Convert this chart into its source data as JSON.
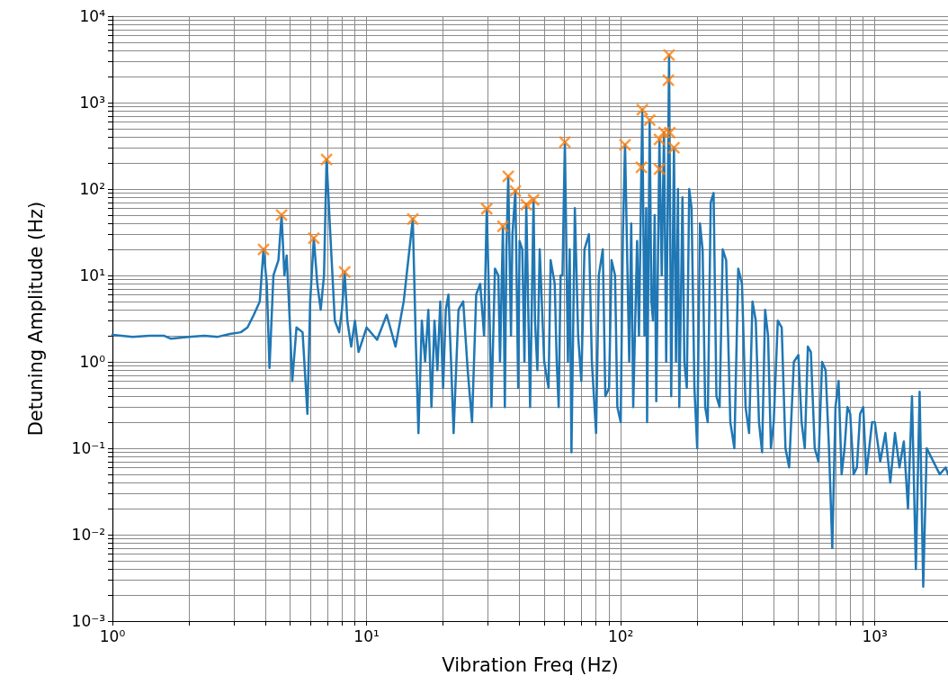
{
  "chart_data": {
    "type": "line",
    "xlabel": "Vibration Freq (Hz)",
    "ylabel": "Detuning Amplitude (Hz)",
    "log": "xy",
    "grid": true,
    "xlim": [
      1,
      1940
    ],
    "ylim": [
      0.001,
      10000
    ],
    "xticks": [
      {
        "value": 1,
        "label": "10⁰"
      },
      {
        "value": 10,
        "label": "10¹"
      },
      {
        "value": 100,
        "label": "10²"
      },
      {
        "value": 1000,
        "label": "10³"
      }
    ],
    "yticks": [
      {
        "value": 0.001,
        "label": "10⁻³"
      },
      {
        "value": 0.01,
        "label": "10⁻²"
      },
      {
        "value": 0.1,
        "label": "10⁻¹"
      },
      {
        "value": 1,
        "label": "10⁰"
      },
      {
        "value": 10,
        "label": "10¹"
      },
      {
        "value": 100,
        "label": "10²"
      },
      {
        "value": 1000,
        "label": "10³"
      },
      {
        "value": 10000,
        "label": "10⁴"
      }
    ],
    "series": [
      {
        "type": "line",
        "color": "#1f77b4",
        "line_style": "solid",
        "x": [
          1.0,
          1.2,
          1.4,
          1.6,
          1.7,
          2.0,
          2.3,
          2.6,
          2.9,
          3.2,
          3.4,
          3.6,
          3.8,
          3.93,
          4.05,
          4.15,
          4.3,
          4.5,
          4.63,
          4.75,
          4.85,
          5.0,
          5.1,
          5.3,
          5.6,
          5.85,
          6.0,
          6.2,
          6.4,
          6.6,
          6.8,
          6.96,
          7.2,
          7.5,
          7.8,
          8.0,
          8.2,
          8.4,
          8.7,
          9.0,
          9.3,
          10,
          11,
          12,
          13,
          14,
          15.2,
          15.6,
          16,
          16.5,
          17,
          17.5,
          18,
          18.5,
          19,
          19.5,
          20,
          20.5,
          21,
          21.5,
          22,
          23,
          24,
          25,
          26,
          27,
          28,
          29,
          29.7,
          30.5,
          31,
          32,
          33,
          33.5,
          34.4,
          35,
          35.5,
          36.1,
          37,
          37.5,
          38.5,
          39.5,
          40,
          41,
          41.8,
          42.5,
          44,
          45.4,
          46,
          47,
          48,
          50,
          52,
          53,
          55,
          56,
          57,
          58,
          59,
          60.3,
          62,
          63,
          64,
          66,
          68,
          70,
          72,
          75,
          77,
          80,
          82,
          85,
          87,
          90,
          92,
          95,
          97,
          100,
          102,
          104,
          108,
          110,
          112,
          116,
          118,
          120.6,
          121.6,
          124,
          126,
          127,
          130,
          132,
          134,
          136,
          138,
          142,
          145,
          148,
          151,
          155,
          158,
          162,
          165,
          168,
          170,
          175,
          178,
          182,
          186,
          190,
          195,
          200,
          205,
          210,
          215,
          220,
          226,
          232,
          238,
          245,
          252,
          260,
          270,
          280,
          290,
          300,
          310,
          320,
          330,
          340,
          350,
          360,
          370,
          380,
          390,
          400,
          415,
          430,
          445,
          460,
          480,
          500,
          515,
          530,
          545,
          560,
          580,
          600,
          620,
          640,
          660,
          680,
          700,
          720,
          740,
          760,
          780,
          800,
          825,
          850,
          875,
          900,
          925,
          950,
          975,
          1000,
          1050,
          1100,
          1150,
          1200,
          1250,
          1300,
          1350,
          1400,
          1450,
          1500,
          1550,
          1600,
          1700,
          1800,
          1900,
          1940
        ],
        "values": [
          2.05,
          1.95,
          2.0,
          2.0,
          1.85,
          1.95,
          2.0,
          1.95,
          2.1,
          2.2,
          2.5,
          3.5,
          5,
          20,
          8,
          0.85,
          10,
          15,
          50,
          10,
          17,
          2.5,
          0.6,
          2.5,
          2.2,
          0.25,
          5,
          27,
          8,
          4,
          10,
          220,
          30,
          3,
          2.2,
          4,
          11,
          3,
          1.5,
          3,
          1.3,
          2.5,
          1.8,
          3.5,
          1.5,
          5,
          45,
          2,
          0.15,
          3,
          1,
          4,
          0.3,
          3,
          0.8,
          5,
          0.5,
          4,
          6,
          1,
          0.15,
          4,
          5,
          0.8,
          0.2,
          6,
          8,
          2,
          59,
          3,
          0.3,
          12,
          10,
          1,
          37,
          0.3,
          20,
          140,
          2,
          30,
          95,
          0.5,
          25,
          20,
          1,
          66,
          0.3,
          75,
          3,
          0.8,
          20,
          1,
          0.5,
          15,
          8,
          1,
          0.3,
          10,
          10,
          350,
          1,
          20,
          0.09,
          60,
          2,
          0.6,
          20,
          30,
          1,
          0.15,
          10,
          20,
          0.4,
          0.5,
          15,
          10,
          0.3,
          0.2,
          30,
          325,
          1,
          40,
          0.3,
          25,
          2,
          178,
          826,
          2,
          60,
          0.2,
          630,
          5,
          3,
          50,
          0.35,
          375,
          10,
          453,
          1,
          3550,
          0.4,
          300,
          1,
          100,
          0.3,
          80,
          1,
          0.5,
          100,
          60,
          0.5,
          0.1,
          40,
          20,
          0.3,
          0.2,
          70,
          90,
          0.4,
          0.3,
          20,
          15,
          0.2,
          0.1,
          12,
          8,
          0.3,
          0.15,
          5,
          3,
          0.2,
          0.09,
          4,
          2,
          0.1,
          0.2,
          3,
          2.5,
          0.1,
          0.06,
          1,
          1.2,
          0.2,
          0.1,
          1.5,
          1.3,
          0.1,
          0.07,
          1,
          0.8,
          0.1,
          0.007,
          0.3,
          0.6,
          0.05,
          0.1,
          0.3,
          0.25,
          0.05,
          0.06,
          0.25,
          0.3,
          0.05,
          0.1,
          0.2,
          0.2,
          0.07,
          0.15,
          0.04,
          0.15,
          0.06,
          0.12,
          0.02,
          0.4,
          0.004,
          0.45,
          0.0025,
          0.1,
          0.07,
          0.05,
          0.06,
          0.05
        ]
      },
      {
        "type": "scatter",
        "color": "#ff7f0e",
        "marker": "cross",
        "x": [
          3.93,
          4.63,
          6.2,
          6.96,
          8.2,
          15.2,
          29.7,
          34.4,
          36.1,
          38.5,
          42.5,
          45.4,
          60.3,
          104,
          120.6,
          121.6,
          130,
          142,
          142,
          148,
          154,
          155,
          156,
          162
        ],
        "values": [
          20,
          50,
          27,
          220,
          11,
          45,
          59,
          37,
          140,
          95,
          66,
          75,
          350,
          325,
          178,
          826,
          630,
          375,
          170,
          453,
          1820,
          3550,
          450,
          300
        ]
      }
    ]
  }
}
